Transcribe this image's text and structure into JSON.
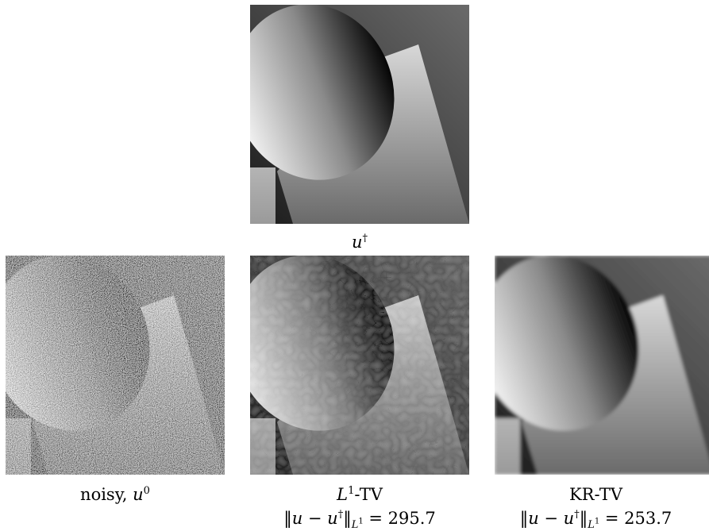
{
  "figure": {
    "panels": [
      {
        "id": "ground-truth",
        "caption_var": "u",
        "caption_sup": "†"
      },
      {
        "id": "noisy",
        "caption_text": "noisy, ",
        "caption_var": "u",
        "caption_sup": "0"
      },
      {
        "id": "l1-tv",
        "method": "L",
        "method_sup": "1",
        "method_suffix": "-TV",
        "error_label_lhs": "‖u − u",
        "error_sup": "†",
        "error_norm": "‖",
        "error_sub": "L",
        "error_sub_sup": "1",
        "error_value": "295.7"
      },
      {
        "id": "kr-tv",
        "method": "KR-TV",
        "error_label_lhs": "‖u − u",
        "error_sup": "†",
        "error_norm": "‖",
        "error_sub": "L",
        "error_sub_sup": "1",
        "error_value": "253.7"
      }
    ]
  }
}
